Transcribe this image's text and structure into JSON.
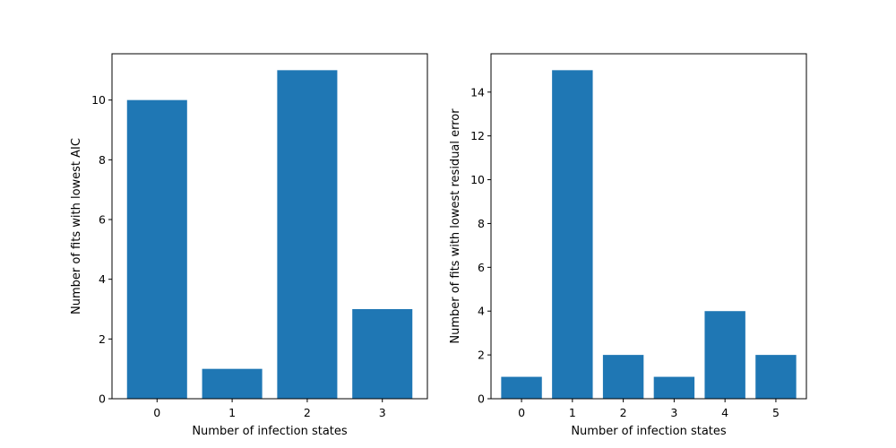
{
  "chart_data": [
    {
      "type": "bar",
      "categories": [
        "0",
        "1",
        "2",
        "3"
      ],
      "values": [
        10,
        1,
        11,
        3
      ],
      "xlabel": "Number of infection states",
      "ylabel": "Number of fits with lowest AIC",
      "ylim": [
        0,
        11.55
      ],
      "yticks": [
        0,
        2,
        4,
        6,
        8,
        10
      ],
      "bar_color": "#1f77b4",
      "grid": false
    },
    {
      "type": "bar",
      "categories": [
        "0",
        "1",
        "2",
        "3",
        "4",
        "5"
      ],
      "values": [
        1,
        15,
        2,
        1,
        4,
        2
      ],
      "xlabel": "Number of infection states",
      "ylabel": "Number of fits with lowest residual error",
      "ylim": [
        0,
        15.75
      ],
      "yticks": [
        0,
        2,
        4,
        6,
        8,
        10,
        12,
        14
      ],
      "bar_color": "#1f77b4",
      "grid": false
    }
  ]
}
